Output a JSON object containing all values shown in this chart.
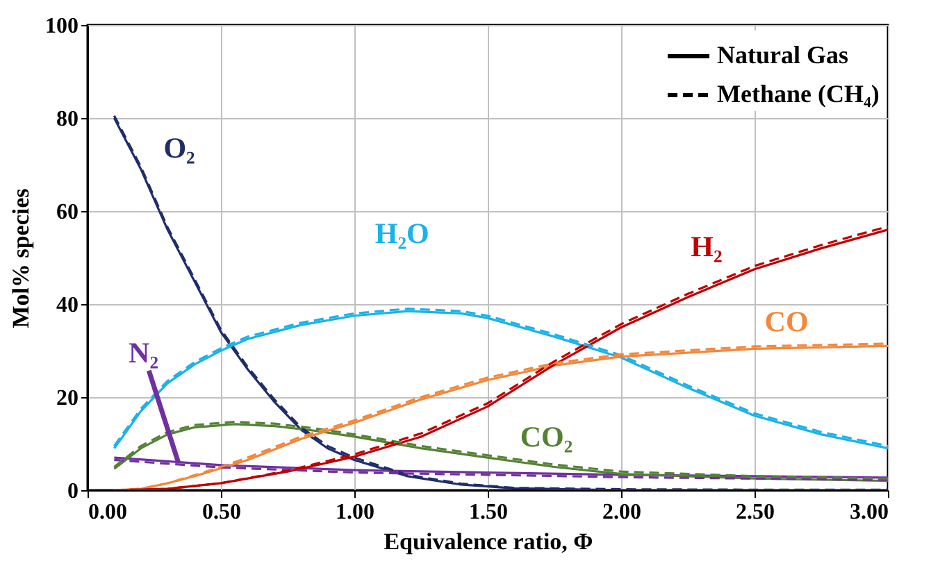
{
  "chart_data": {
    "type": "line",
    "xlabel": "Equivalence ratio, Φ",
    "ylabel": "Mol% species",
    "xlim": [
      0,
      3
    ],
    "xticks": [
      {
        "value": 0,
        "label": "0.00"
      },
      {
        "value": 0.5,
        "label": "0.50"
      },
      {
        "value": 1,
        "label": "1.00"
      },
      {
        "value": 1.5,
        "label": "1.50"
      },
      {
        "value": 2,
        "label": "2.00"
      },
      {
        "value": 2.5,
        "label": "2.50"
      },
      {
        "value": 3,
        "label": "3.00"
      }
    ],
    "ylim": [
      0,
      100
    ],
    "yticks": [
      0,
      20,
      40,
      60,
      80,
      100
    ],
    "grid": true,
    "line_style": "solid",
    "series": [
      {
        "color": "#1f2d6b",
        "x": [
          0.1,
          0.2,
          0.3,
          0.4,
          0.5,
          0.6,
          0.7,
          0.8,
          0.9,
          1.0,
          1.2,
          1.4,
          1.6,
          2.0,
          2.5,
          3.0
        ],
        "values": [
          80,
          69,
          56,
          45,
          34,
          26,
          19,
          13,
          9,
          6.5,
          3,
          1.2,
          0.4,
          0,
          0,
          0
        ]
      },
      {
        "color": "#1ab2ea",
        "x": [
          0.1,
          0.2,
          0.3,
          0.4,
          0.5,
          0.6,
          0.8,
          1.0,
          1.2,
          1.4,
          1.5,
          1.75,
          2.0,
          2.25,
          2.5,
          2.75,
          3.0
        ],
        "values": [
          9,
          17,
          23,
          27,
          30,
          32.5,
          35.5,
          37.5,
          38.5,
          38,
          37,
          33,
          28.5,
          22,
          16,
          12,
          9
        ]
      },
      {
        "color": "#7030a0",
        "x": [
          0.1,
          0.3,
          0.5,
          1.0,
          1.5,
          2.0,
          2.5,
          3.0
        ],
        "values": [
          7,
          6.2,
          5.4,
          4.3,
          3.8,
          3.3,
          3,
          2.7
        ]
      },
      {
        "color": "#548235",
        "x": [
          0.1,
          0.2,
          0.3,
          0.4,
          0.55,
          0.7,
          0.85,
          1.0,
          1.25,
          1.5,
          1.75,
          2.0,
          2.5,
          3.0
        ],
        "values": [
          4.6,
          9,
          12,
          13.5,
          14.2,
          13.8,
          12.8,
          11.5,
          9,
          7,
          5,
          3.5,
          2.5,
          2
        ]
      },
      {
        "color": "#f4873a",
        "x": [
          0.1,
          0.2,
          0.3,
          0.4,
          0.5,
          0.6,
          0.8,
          1.0,
          1.25,
          1.5,
          1.75,
          2.0,
          2.5,
          3.0
        ],
        "values": [
          0,
          0.3,
          1.5,
          3,
          4.7,
          6.5,
          11,
          14.5,
          19.5,
          23.7,
          26.8,
          28.7,
          30.4,
          31
        ]
      },
      {
        "color": "#c00000",
        "x": [
          0.1,
          0.3,
          0.5,
          0.75,
          1.0,
          1.25,
          1.5,
          1.75,
          2.0,
          2.25,
          2.5,
          2.75,
          3.0
        ],
        "values": [
          0,
          0.3,
          1.5,
          4,
          7.2,
          11.5,
          18,
          27,
          35,
          41.5,
          47.5,
          52,
          56
        ]
      },
      {
        "line_style": "dashed",
        "color": "#1f2d6b",
        "x": [
          0.1,
          0.2,
          0.3,
          0.4,
          0.5,
          0.6,
          0.7,
          0.8,
          0.9,
          1.0,
          1.2,
          1.4,
          1.6,
          2.0,
          2.5,
          3.0
        ],
        "values": [
          80.5,
          69.5,
          56.5,
          45.5,
          34.5,
          26.5,
          19.5,
          13.5,
          9.5,
          7,
          3.3,
          1.4,
          0.5,
          0.2,
          0.1,
          0.1
        ]
      },
      {
        "line_style": "dashed",
        "color": "#1ab2ea",
        "x": [
          0.1,
          0.2,
          0.3,
          0.4,
          0.5,
          0.6,
          0.8,
          1.0,
          1.2,
          1.4,
          1.5,
          1.75,
          2.0,
          2.25,
          2.5,
          2.75,
          3.0
        ],
        "values": [
          9.5,
          17.5,
          23.5,
          27.5,
          30.5,
          33,
          36,
          38,
          39,
          38.5,
          37.5,
          33.5,
          29,
          22.5,
          16.5,
          12.5,
          9.5
        ]
      },
      {
        "line_style": "dashed",
        "color": "#7030a0",
        "x": [
          0.1,
          0.3,
          0.5,
          1.0,
          1.5,
          2.0,
          2.5,
          3.0
        ],
        "values": [
          6.5,
          5.7,
          4.9,
          3.8,
          3.3,
          2.8,
          2.5,
          2.2
        ]
      },
      {
        "line_style": "dashed",
        "color": "#548235",
        "x": [
          0.1,
          0.2,
          0.3,
          0.4,
          0.55,
          0.7,
          0.85,
          1.0,
          1.25,
          1.5,
          1.75,
          2.0,
          2.5,
          3.0
        ],
        "values": [
          5,
          9.5,
          12.5,
          14,
          14.7,
          14.3,
          13.3,
          12,
          9.5,
          7.5,
          5.5,
          4,
          3,
          2.5
        ]
      },
      {
        "line_style": "dashed",
        "color": "#f4873a",
        "x": [
          0.1,
          0.2,
          0.3,
          0.4,
          0.5,
          0.6,
          0.8,
          1.0,
          1.25,
          1.5,
          1.75,
          2.0,
          2.5,
          3.0
        ],
        "values": [
          0,
          0.3,
          1.5,
          3.2,
          5,
          7,
          11.5,
          15,
          20,
          24.2,
          27.3,
          29.2,
          30.9,
          31.5
        ]
      },
      {
        "line_style": "dashed",
        "color": "#c00000",
        "x": [
          0.1,
          0.3,
          0.5,
          0.75,
          1.0,
          1.25,
          1.5,
          1.75,
          2.0,
          2.25,
          2.5,
          2.75,
          3.0
        ],
        "values": [
          0,
          0.3,
          1.5,
          4.2,
          7.7,
          12.2,
          18.7,
          27.7,
          35.7,
          42.2,
          48.2,
          52.7,
          56.7
        ]
      }
    ],
    "annotations": [
      {
        "text": "O₂",
        "x": 0.25,
        "y": 62.5
      },
      {
        "text": "H₂O",
        "x": 1.2,
        "y": 38.5
      },
      {
        "text": "N₂",
        "x": 0.34,
        "y": 6
      },
      {
        "text": "CO₂",
        "x": 1.72,
        "y": 5.2
      },
      {
        "text": "CO",
        "x": 2.62,
        "y": 30.6
      },
      {
        "text": "H₂",
        "x": 2.32,
        "y": 43.2
      },
      "Natural Gas",
      "Methane (CH₄)"
    ]
  }
}
